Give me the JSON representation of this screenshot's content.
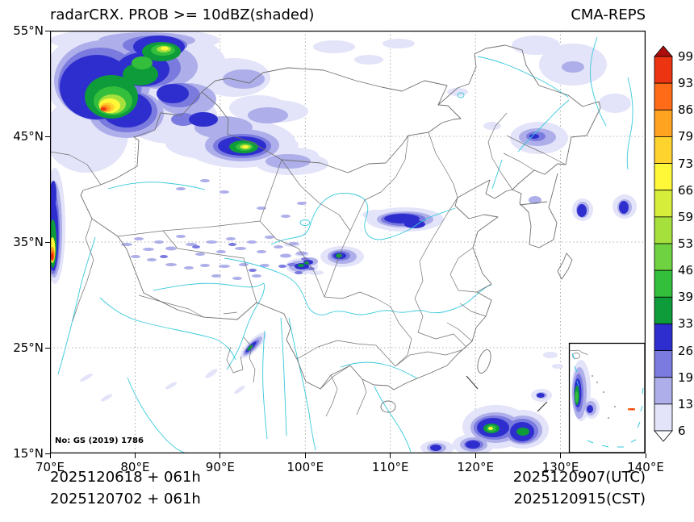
{
  "header": {
    "title": "radarCRX. PROB >= 10dBZ(shaded)",
    "model": "CMA-REPS"
  },
  "axes": {
    "x_ticks": [
      "70°E",
      "80°E",
      "90°E",
      "100°E",
      "110°E",
      "120°E",
      "130°E",
      "140°E"
    ],
    "y_ticks": [
      "55°N",
      "45°N",
      "35°N",
      "25°N",
      "15°N"
    ],
    "x_range_deg_e": [
      70,
      140
    ],
    "y_range_deg_n": [
      15,
      55
    ]
  },
  "colorbar": {
    "labels_top_to_bottom": [
      "99",
      "93",
      "86",
      "79",
      "73",
      "66",
      "59",
      "53",
      "46",
      "39",
      "33",
      "26",
      "19",
      "13",
      "6"
    ],
    "colors_bottom_to_top": [
      "#FFFFFF",
      "#E3E3F9",
      "#AEAEEA",
      "#7A7ADF",
      "#2E2ECF",
      "#0E9B3A",
      "#33BE3C",
      "#6FD241",
      "#A5E03C",
      "#D6ED3A",
      "#FFF838",
      "#FFD32E",
      "#FFA321",
      "#FF6B16",
      "#EC3312",
      "#AC0E0E"
    ]
  },
  "map": {
    "license_label": "No: GS (2019) 1786",
    "border_color": "#707070",
    "river_color": "#38C9DC",
    "grid_color": "#999999"
  },
  "footer": {
    "init1": "2025120618 + 061h",
    "init2": "2025120702 + 061h",
    "valid_utc": "2025120907(UTC)",
    "valid_cst": "2025120915(CST)"
  },
  "chart_data": {
    "type": "heatmap",
    "title": "radarCRX. PROB >= 10dBZ(shaded)",
    "model": "CMA-REPS",
    "variable": "Probability of composite radar reflectivity >= 10 dBZ",
    "units": "%",
    "levels": [
      6,
      13,
      19,
      26,
      33,
      39,
      46,
      53,
      59,
      66,
      73,
      79,
      86,
      93,
      99
    ],
    "lon_range_deg_e": [
      70,
      140
    ],
    "lat_range_deg_n": [
      15,
      55
    ],
    "init_lines": [
      "2025120618 + 061h",
      "2025120702 + 061h"
    ],
    "valid_times": [
      "2025120907(UTC)",
      "2025120915(CST)"
    ],
    "shaded_regions": [
      {
        "area": "NW corner / Xinjiang-Kazakhstan (71-88E, 44-55N)",
        "peak": "99+ with red core near 76.5E 48N and green-yellow core near 78-80E 53N"
      },
      {
        "area": "East Xinjiang (~92E, 44.5N)",
        "peak": "~66 (yellow-green core inside blue patch)"
      },
      {
        "area": "West map edge strip (70-71.5E, 32-41N)",
        "peak": "99+ (red/orange streak near 34N)"
      },
      {
        "area": "Tibetan Plateau scattered streaks (78-101E, 29-36N)",
        "peak": "13-33"
      },
      {
        "area": "Qinghai cluster (~99-101E, 32-34N)",
        "peak": "~39"
      },
      {
        "area": "Shaanxi/Shanxi patch (~108-113E, 36-38.5N)",
        "peak": "~33"
      },
      {
        "area": "North Sichuan (~103-106E, 33-34.5N)",
        "peak": "~39"
      },
      {
        "area": "Myanmar border streak (~93.5E, 24.5N)",
        "peak": "~39"
      },
      {
        "area": "South China Sea / Philippine Sea (114-128E, 15-22N)",
        "peak": "~66 (green cores ~122.5E 17.5N)"
      },
      {
        "area": "NE China (~127.5E, 45N)",
        "peak": "~26"
      },
      {
        "area": "Sea of Japan right edge (~137E, 38N)",
        "peak": "~26"
      },
      {
        "area": "South China Sea inset",
        "peak": "~46 vertical green streak, small orange mark at right"
      }
    ],
    "legend_position": "right vertical colorbar with pointed over/under triangles"
  }
}
